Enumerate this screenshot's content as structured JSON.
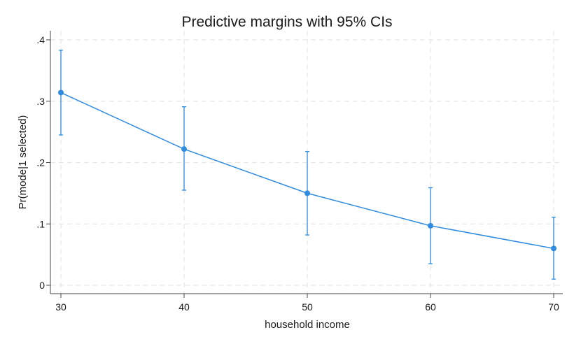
{
  "chart_data": {
    "type": "line",
    "title": "Predictive margins with 95% CIs",
    "xlabel": "household income",
    "ylabel": "Pr(mode|1 selected)",
    "x_ticks": [
      {
        "value": 30,
        "label": "30"
      },
      {
        "value": 40,
        "label": "40"
      },
      {
        "value": 50,
        "label": "50"
      },
      {
        "value": 60,
        "label": "60"
      },
      {
        "value": 70,
        "label": "70"
      }
    ],
    "y_ticks": [
      {
        "value": 0,
        "label": "0"
      },
      {
        "value": 0.1,
        "label": ".1"
      },
      {
        "value": 0.2,
        "label": ".2"
      },
      {
        "value": 0.3,
        "label": ".3"
      },
      {
        "value": 0.4,
        "label": ".4"
      }
    ],
    "xlim": [
      30,
      70
    ],
    "ylim": [
      0,
      0.4
    ],
    "grid": true,
    "series": [
      {
        "x": [
          30,
          40,
          50,
          60,
          70
        ],
        "values": [
          0.314,
          0.222,
          0.15,
          0.097,
          0.06
        ],
        "ci_lower": [
          0.245,
          0.155,
          0.082,
          0.035,
          0.01
        ],
        "ci_upper": [
          0.383,
          0.291,
          0.218,
          0.159,
          0.111
        ],
        "color": "#2f8ce0"
      }
    ]
  }
}
